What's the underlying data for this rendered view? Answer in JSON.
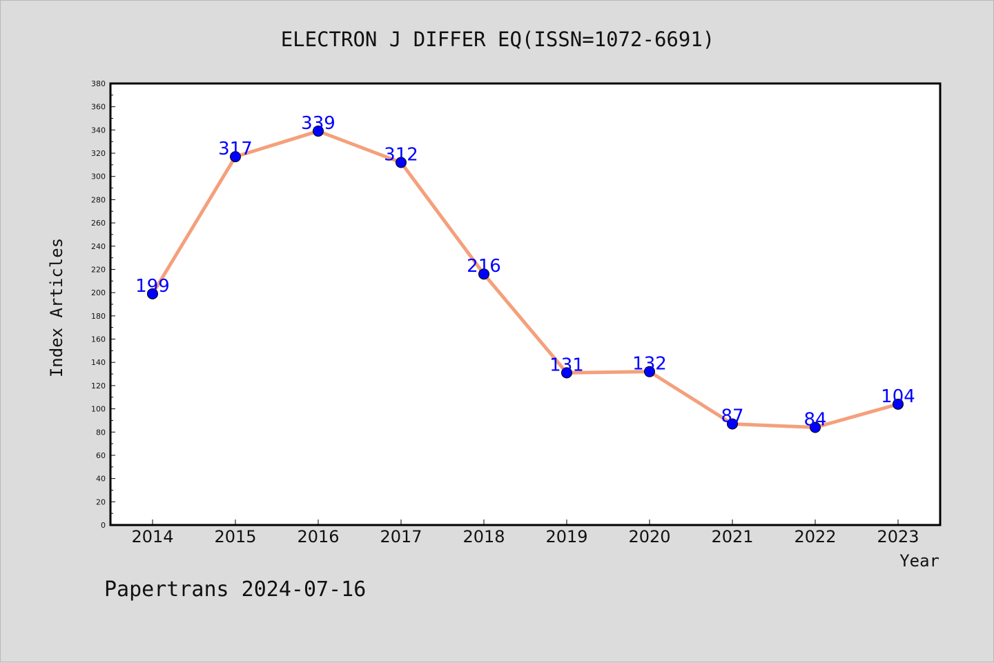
{
  "chart_data": {
    "type": "line",
    "title": "ELECTRON J DIFFER EQ(ISSN=1072-6691)",
    "xlabel": "Year",
    "ylabel": "Index Articles",
    "categories": [
      "2014",
      "2015",
      "2016",
      "2017",
      "2018",
      "2019",
      "2020",
      "2021",
      "2022",
      "2023"
    ],
    "series": [
      {
        "values": [
          199,
          317,
          339,
          312,
          216,
          131,
          132,
          87,
          84,
          104
        ]
      }
    ],
    "ylim": [
      0,
      380
    ],
    "yticks": [
      0,
      20,
      40,
      60,
      80,
      100,
      120,
      140,
      160,
      180,
      200,
      220,
      240,
      260,
      280,
      300,
      320,
      340,
      360,
      380
    ],
    "grid": false,
    "colors": {
      "line": "#f4a07c",
      "marker": "#0000ff",
      "label": "#0000ff",
      "background": "#dcdcdc",
      "plot_bg": "#ffffff"
    }
  },
  "footer": "Papertrans 2024-07-16"
}
